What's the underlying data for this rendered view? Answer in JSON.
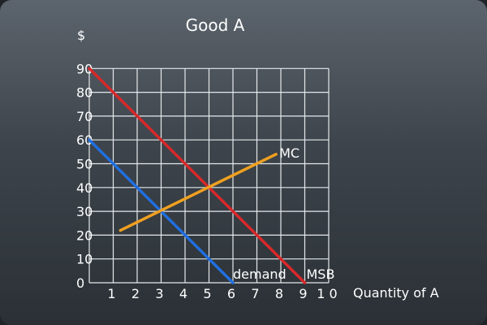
{
  "chart_data": {
    "type": "line",
    "title": "Good  A",
    "ylabel": "$",
    "xlabel": "Quantity of A",
    "xlim": [
      0,
      10
    ],
    "ylim": [
      0,
      90
    ],
    "x_ticks": [
      "1",
      "2",
      "3",
      "4",
      "5",
      "6",
      "7",
      "8",
      "9",
      "1 0"
    ],
    "y_ticks": [
      "0",
      "10",
      "20",
      "30",
      "40",
      "50",
      "60",
      "70",
      "80",
      "90"
    ],
    "grid": true,
    "series": [
      {
        "name": "MSB",
        "color": "#d8282a",
        "x": [
          0,
          9
        ],
        "y": [
          90,
          0
        ]
      },
      {
        "name": "demand",
        "color": "#1f6fe0",
        "x": [
          0,
          6
        ],
        "y": [
          60,
          0
        ]
      },
      {
        "name": "MC",
        "color": "#f0a020",
        "x": [
          1.3,
          7.8
        ],
        "y": [
          22,
          54
        ]
      }
    ],
    "line_labels": {
      "MSB": "MSB",
      "demand": "demand",
      "MC": "MC"
    }
  }
}
